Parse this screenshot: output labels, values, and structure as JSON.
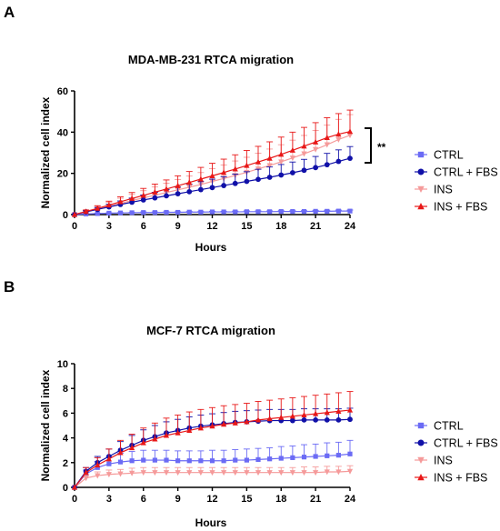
{
  "figure": {
    "panels": [
      {
        "letter": "A"
      },
      {
        "letter": "B"
      }
    ],
    "significance": "**"
  },
  "colors": {
    "CTRL": "#6B6BF5",
    "CTRL + FBS": "#1010A8",
    "INS": "#F59A9A",
    "INS + FBS": "#E81818"
  },
  "markers": {
    "CTRL": "square",
    "CTRL + FBS": "circle",
    "INS": "triangle-down",
    "INS + FBS": "triangle-up"
  },
  "chart_data": [
    {
      "type": "line",
      "title": "MDA-MB-231 RTCA migration",
      "xlabel": "Hours",
      "ylabel": "Normalized cell index",
      "xlim": [
        0,
        24
      ],
      "ylim": [
        0,
        60
      ],
      "xticks": [
        "0",
        "3",
        "6",
        "9",
        "12",
        "15",
        "18",
        "21",
        "24"
      ],
      "yticks": [
        "0",
        "20",
        "40",
        "60"
      ],
      "x": [
        0,
        1,
        2,
        3,
        4,
        5,
        6,
        7,
        8,
        9,
        10,
        11,
        12,
        13,
        14,
        15,
        16,
        17,
        18,
        19,
        20,
        21,
        22,
        23,
        24
      ],
      "legend_position": "right",
      "series": [
        {
          "name": "CTRL",
          "values": [
            0,
            0.3,
            0.5,
            0.7,
            0.8,
            0.9,
            1.0,
            1.0,
            1.1,
            1.1,
            1.2,
            1.2,
            1.3,
            1.3,
            1.3,
            1.4,
            1.4,
            1.4,
            1.5,
            1.5,
            1.5,
            1.6,
            1.6,
            1.7,
            1.7
          ],
          "errors": [
            0,
            0.1,
            0.2,
            0.2,
            0.2,
            0.2,
            0.3,
            0.3,
            0.3,
            0.3,
            0.3,
            0.3,
            0.3,
            0.3,
            0.4,
            0.4,
            0.4,
            0.4,
            0.4,
            0.4,
            0.4,
            0.4,
            0.5,
            0.5,
            0.5
          ]
        },
        {
          "name": "CTRL + FBS",
          "values": [
            0,
            1.3,
            2.5,
            3.7,
            4.9,
            6.0,
            7.1,
            8.1,
            9.1,
            10.1,
            11.1,
            12.1,
            13.1,
            14.1,
            15.1,
            16.1,
            17.1,
            18.1,
            19.2,
            20.3,
            21.5,
            22.8,
            24.2,
            25.8,
            27.3
          ],
          "errors": [
            0,
            0.5,
            0.9,
            1.3,
            1.7,
            2.0,
            2.4,
            2.7,
            3.0,
            3.3,
            3.6,
            3.9,
            4.1,
            4.3,
            4.5,
            4.7,
            4.9,
            5.0,
            5.1,
            5.2,
            5.3,
            5.4,
            5.5,
            5.6,
            5.7
          ]
        },
        {
          "name": "INS",
          "values": [
            0,
            1.4,
            2.7,
            4.1,
            5.4,
            6.8,
            8.1,
            9.4,
            10.7,
            12.0,
            13.3,
            14.6,
            16.1,
            17.5,
            19.0,
            20.5,
            22.2,
            23.8,
            25.6,
            27.5,
            29.5,
            31.6,
            33.9,
            36.4,
            38.5
          ],
          "errors": [
            0,
            0.7,
            1.3,
            1.9,
            2.5,
            3.0,
            3.5,
            4.0,
            4.5,
            5.0,
            5.4,
            5.8,
            6.2,
            6.6,
            7.0,
            7.3,
            7.6,
            8.0,
            8.3,
            8.6,
            8.9,
            9.2,
            9.5,
            9.8,
            10.0
          ]
        },
        {
          "name": "INS + FBS",
          "values": [
            0,
            1.5,
            3.0,
            4.6,
            6.2,
            7.8,
            9.3,
            10.9,
            12.4,
            14.0,
            15.6,
            17.2,
            18.8,
            20.4,
            22.1,
            23.8,
            25.5,
            27.3,
            29.2,
            31.2,
            33.2,
            35.2,
            37.3,
            39.0,
            40.3
          ],
          "errors": [
            0,
            0.7,
            1.3,
            1.9,
            2.4,
            2.9,
            3.4,
            3.9,
            4.4,
            4.8,
            5.3,
            5.7,
            6.1,
            6.5,
            6.9,
            7.3,
            7.6,
            8.0,
            8.4,
            8.8,
            9.1,
            9.4,
            9.7,
            10.0,
            10.4
          ]
        }
      ]
    },
    {
      "type": "line",
      "title": "MCF-7 RTCA migration",
      "xlabel": "Hours",
      "ylabel": "Normalized cell index",
      "xlim": [
        0,
        24
      ],
      "ylim": [
        0,
        10
      ],
      "xticks": [
        "0",
        "3",
        "6",
        "9",
        "12",
        "15",
        "18",
        "21",
        "24"
      ],
      "yticks": [
        "0",
        "2",
        "4",
        "6",
        "8",
        "10"
      ],
      "x": [
        0,
        1,
        2,
        3,
        4,
        5,
        6,
        7,
        8,
        9,
        10,
        11,
        12,
        13,
        14,
        15,
        16,
        17,
        18,
        19,
        20,
        21,
        22,
        23,
        24
      ],
      "legend_position": "right",
      "series": [
        {
          "name": "CTRL",
          "values": [
            0,
            1.1,
            1.6,
            1.9,
            2.05,
            2.15,
            2.2,
            2.2,
            2.2,
            2.15,
            2.15,
            2.15,
            2.15,
            2.15,
            2.2,
            2.2,
            2.25,
            2.3,
            2.35,
            2.4,
            2.45,
            2.5,
            2.55,
            2.6,
            2.7
          ],
          "errors": [
            0,
            0.3,
            0.5,
            0.6,
            0.7,
            0.75,
            0.8,
            0.8,
            0.8,
            0.8,
            0.8,
            0.8,
            0.85,
            0.85,
            0.85,
            0.9,
            0.9,
            0.9,
            0.95,
            0.95,
            1.0,
            1.0,
            1.05,
            1.05,
            1.1
          ]
        },
        {
          "name": "CTRL + FBS",
          "values": [
            0,
            1.3,
            2.0,
            2.5,
            3.0,
            3.4,
            3.8,
            4.1,
            4.4,
            4.6,
            4.8,
            4.95,
            5.05,
            5.15,
            5.25,
            5.3,
            5.35,
            5.4,
            5.4,
            5.4,
            5.45,
            5.45,
            5.45,
            5.45,
            5.5
          ],
          "errors": [
            0,
            0.3,
            0.5,
            0.6,
            0.7,
            0.8,
            0.85,
            0.9,
            0.9,
            0.9,
            0.9,
            0.9,
            0.9,
            0.9,
            0.9,
            0.9,
            0.9,
            0.9,
            0.9,
            0.9,
            0.9,
            0.9,
            0.9,
            0.9,
            0.9
          ]
        },
        {
          "name": "INS",
          "values": [
            0,
            0.75,
            0.95,
            1.05,
            1.1,
            1.15,
            1.2,
            1.2,
            1.2,
            1.2,
            1.2,
            1.2,
            1.2,
            1.2,
            1.2,
            1.2,
            1.2,
            1.2,
            1.2,
            1.2,
            1.2,
            1.2,
            1.25,
            1.25,
            1.3
          ],
          "errors": [
            0,
            0.2,
            0.3,
            0.35,
            0.35,
            0.4,
            0.4,
            0.4,
            0.4,
            0.4,
            0.4,
            0.4,
            0.4,
            0.4,
            0.4,
            0.4,
            0.4,
            0.4,
            0.4,
            0.4,
            0.45,
            0.45,
            0.45,
            0.45,
            0.45
          ]
        },
        {
          "name": "INS + FBS",
          "values": [
            0,
            1.2,
            1.8,
            2.3,
            2.8,
            3.2,
            3.6,
            3.9,
            4.2,
            4.4,
            4.6,
            4.8,
            4.95,
            5.1,
            5.2,
            5.3,
            5.45,
            5.55,
            5.65,
            5.75,
            5.85,
            5.95,
            6.05,
            6.15,
            6.25
          ],
          "errors": [
            0,
            0.4,
            0.6,
            0.8,
            1.0,
            1.1,
            1.2,
            1.3,
            1.4,
            1.45,
            1.5,
            1.5,
            1.5,
            1.5,
            1.5,
            1.5,
            1.5,
            1.5,
            1.5,
            1.5,
            1.5,
            1.5,
            1.5,
            1.5,
            1.5
          ]
        }
      ]
    }
  ]
}
